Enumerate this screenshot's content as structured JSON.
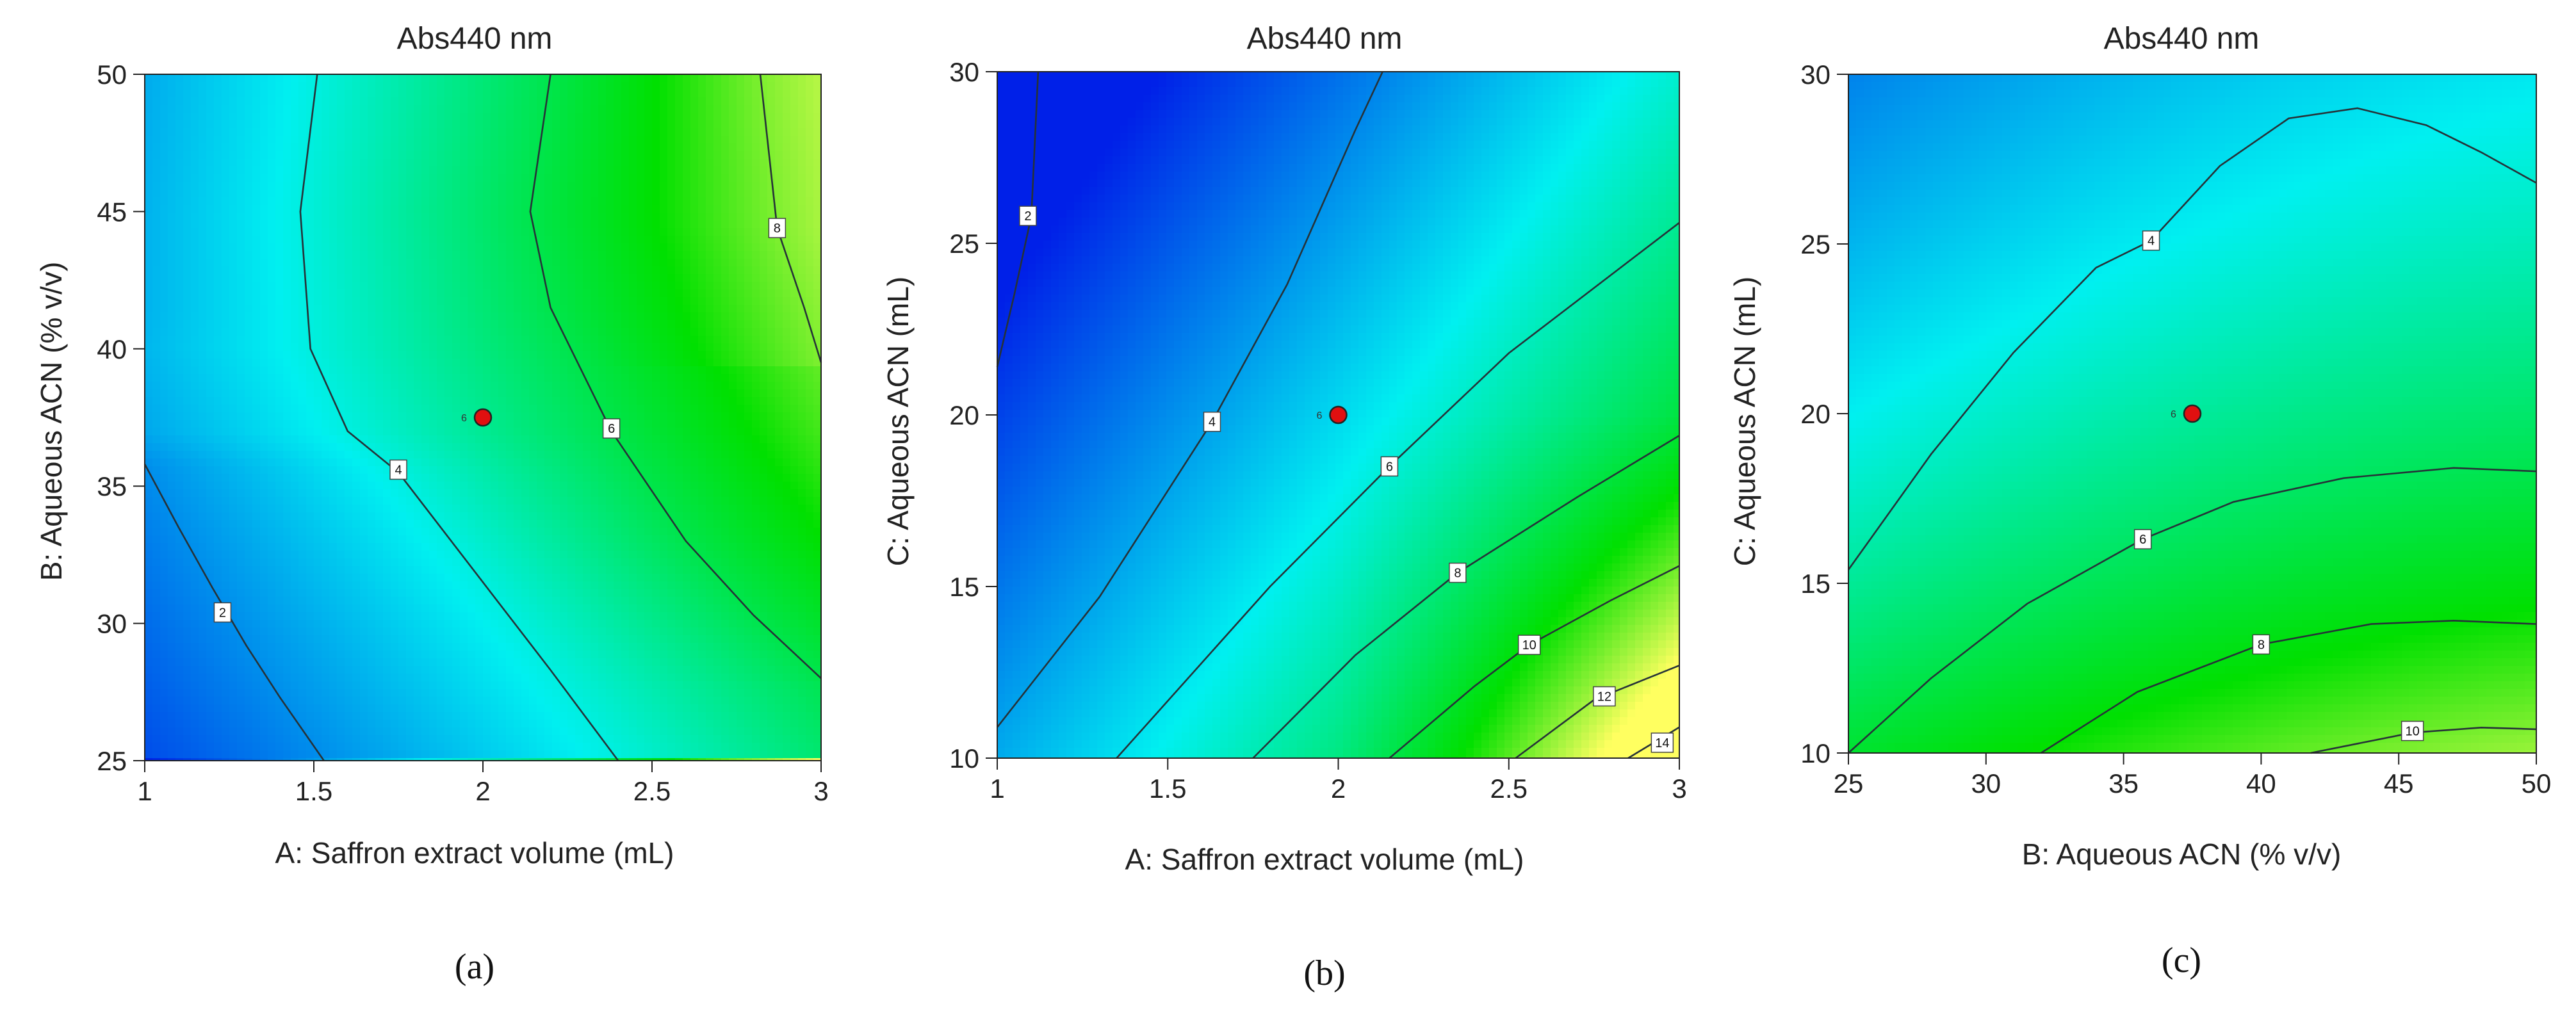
{
  "colors": {
    "blue": "#0020e8",
    "cyan": "#00f0f0",
    "green": "#00e000",
    "yellow": "#ffff60",
    "contour": "#263238",
    "center_point": "#e01010"
  },
  "chart_data": [
    {
      "type": "contour",
      "panel_label": "(a)",
      "title": "Abs440 nm",
      "xlabel": "A: Saffron extract volume (mL)",
      "ylabel": "B: Aqueous ACN (% v/v)",
      "xlim": [
        1,
        3
      ],
      "ylim": [
        25,
        50
      ],
      "xticks": [
        1,
        1.5,
        2,
        2.5,
        3
      ],
      "yticks": [
        25,
        30,
        35,
        40,
        45,
        50
      ],
      "xtick_labels": [
        "1",
        "1.5",
        "2",
        "2.5",
        "3"
      ],
      "ytick_labels": [
        "25",
        "30",
        "35",
        "40",
        "45",
        "50"
      ],
      "zrange": [
        0,
        9
      ],
      "contours": [
        {
          "level": "2",
          "points": [
            [
              1.0,
              35.8
            ],
            [
              1.1,
              33.5
            ],
            [
              1.2,
              31.3
            ],
            [
              1.3,
              29.2
            ],
            [
              1.4,
              27.3
            ],
            [
              1.53,
              25.0
            ]
          ],
          "label_at": [
            1.23,
            30.4
          ]
        },
        {
          "level": "4",
          "points": [
            [
              1.51,
              50.0
            ],
            [
              1.46,
              45.0
            ],
            [
              1.49,
              40.0
            ],
            [
              1.6,
              37.0
            ],
            [
              1.75,
              35.5
            ],
            [
              2.0,
              31.5
            ],
            [
              2.2,
              28.3
            ],
            [
              2.4,
              25.0
            ]
          ],
          "label_at": [
            1.75,
            35.6
          ]
        },
        {
          "level": "6",
          "points": [
            [
              2.2,
              50.0
            ],
            [
              2.14,
              45.0
            ],
            [
              2.2,
              41.5
            ],
            [
              2.38,
              37.0
            ],
            [
              2.6,
              33.0
            ],
            [
              2.8,
              30.3
            ],
            [
              3.0,
              28.0
            ]
          ],
          "label_at": [
            2.38,
            37.1
          ]
        },
        {
          "level": "8",
          "points": [
            [
              2.82,
              50.0
            ],
            [
              2.87,
              44.4
            ],
            [
              2.95,
              41.5
            ],
            [
              3.0,
              39.5
            ]
          ],
          "label_at": [
            2.87,
            44.4
          ]
        }
      ],
      "center_point": {
        "x": 2.0,
        "y": 37.5,
        "label": "6"
      }
    },
    {
      "type": "contour",
      "panel_label": "(b)",
      "title": "Abs440 nm",
      "xlabel": "A: Saffron extract volume (mL)",
      "ylabel": "C: Aqueous ACN (mL)",
      "xlim": [
        1,
        3
      ],
      "ylim": [
        10,
        30
      ],
      "xticks": [
        1,
        1.5,
        2,
        2.5,
        3
      ],
      "yticks": [
        10,
        15,
        20,
        25,
        30
      ],
      "xtick_labels": [
        "1",
        "1.5",
        "2",
        "2.5",
        "3"
      ],
      "ytick_labels": [
        "10",
        "15",
        "20",
        "25",
        "30"
      ],
      "zrange": [
        0,
        15
      ],
      "contours": [
        {
          "level": "2",
          "points": [
            [
              1.12,
              30.0
            ],
            [
              1.1,
              25.8
            ],
            [
              1.05,
              23.5
            ],
            [
              1.0,
              21.4
            ]
          ],
          "label_at": [
            1.09,
            25.8
          ]
        },
        {
          "level": "4",
          "points": [
            [
              1.0,
              10.9
            ],
            [
              1.3,
              14.7
            ],
            [
              1.63,
              19.8
            ],
            [
              1.85,
              23.8
            ],
            [
              2.05,
              28.3
            ],
            [
              2.13,
              30.0
            ]
          ],
          "label_at": [
            1.63,
            19.8
          ]
        },
        {
          "level": "6",
          "points": [
            [
              1.35,
              10.0
            ],
            [
              1.8,
              15.0
            ],
            [
              2.15,
              18.5
            ],
            [
              2.5,
              21.8
            ],
            [
              3.0,
              25.6
            ]
          ],
          "label_at": [
            2.15,
            18.5
          ]
        },
        {
          "level": "8",
          "points": [
            [
              1.75,
              10.0
            ],
            [
              2.05,
              13.0
            ],
            [
              2.35,
              15.4
            ],
            [
              2.7,
              17.6
            ],
            [
              3.0,
              19.4
            ]
          ],
          "label_at": [
            2.35,
            15.4
          ]
        },
        {
          "level": "10",
          "points": [
            [
              2.15,
              10.0
            ],
            [
              2.4,
              12.1
            ],
            [
              2.56,
              13.3
            ],
            [
              2.8,
              14.6
            ],
            [
              3.0,
              15.6
            ]
          ],
          "label_at": [
            2.56,
            13.3
          ]
        },
        {
          "level": "12",
          "points": [
            [
              2.52,
              10.0
            ],
            [
              2.75,
              11.7
            ],
            [
              2.9,
              12.3
            ],
            [
              3.0,
              12.7
            ]
          ],
          "label_at": [
            2.78,
            11.8
          ]
        },
        {
          "level": "14",
          "points": [
            [
              2.85,
              10.0
            ],
            [
              2.95,
              10.6
            ],
            [
              3.0,
              10.9
            ]
          ],
          "label_at": [
            2.95,
            10.45
          ]
        }
      ],
      "center_point": {
        "x": 2.0,
        "y": 20.0,
        "label": "6"
      }
    },
    {
      "type": "contour",
      "panel_label": "(c)",
      "title": "Abs440 nm",
      "xlabel": "B: Aqueous ACN (% v/v)",
      "ylabel": "C: Aqueous ACN (mL)",
      "xlim": [
        25,
        50
      ],
      "ylim": [
        10,
        30
      ],
      "xticks": [
        25,
        30,
        35,
        40,
        45,
        50
      ],
      "yticks": [
        10,
        15,
        20,
        25,
        30
      ],
      "xtick_labels": [
        "25",
        "30",
        "35",
        "40",
        "45",
        "50"
      ],
      "ytick_labels": [
        "10",
        "15",
        "20",
        "25",
        "30"
      ],
      "zrange": [
        0,
        11
      ],
      "contours": [
        {
          "level": "4",
          "points": [
            [
              25.0,
              15.4
            ],
            [
              28.0,
              18.8
            ],
            [
              31.0,
              21.8
            ],
            [
              34.0,
              24.3
            ],
            [
              36.0,
              25.1
            ],
            [
              38.5,
              27.3
            ],
            [
              41.0,
              28.7
            ],
            [
              43.5,
              29.0
            ],
            [
              46.0,
              28.5
            ],
            [
              48.0,
              27.7
            ],
            [
              50.0,
              26.8
            ]
          ],
          "label_at": [
            36.0,
            25.1
          ]
        },
        {
          "level": "6",
          "points": [
            [
              25.0,
              10.0
            ],
            [
              28.0,
              12.2
            ],
            [
              31.5,
              14.4
            ],
            [
              35.7,
              16.3
            ],
            [
              39.0,
              17.4
            ],
            [
              43.0,
              18.1
            ],
            [
              47.0,
              18.4
            ],
            [
              50.0,
              18.3
            ]
          ],
          "label_at": [
            35.7,
            16.3
          ]
        },
        {
          "level": "8",
          "points": [
            [
              32.0,
              10.0
            ],
            [
              35.5,
              11.8
            ],
            [
              40.0,
              13.2
            ],
            [
              44.0,
              13.8
            ],
            [
              47.0,
              13.9
            ],
            [
              50.0,
              13.8
            ]
          ],
          "label_at": [
            40.0,
            13.2
          ]
        },
        {
          "level": "10",
          "points": [
            [
              41.8,
              10.0
            ],
            [
              45.5,
              10.6
            ],
            [
              48.0,
              10.75
            ],
            [
              50.0,
              10.7
            ]
          ],
          "label_at": [
            45.5,
            10.65
          ]
        }
      ],
      "center_point": {
        "x": 37.5,
        "y": 20.0,
        "label": "6"
      }
    }
  ]
}
